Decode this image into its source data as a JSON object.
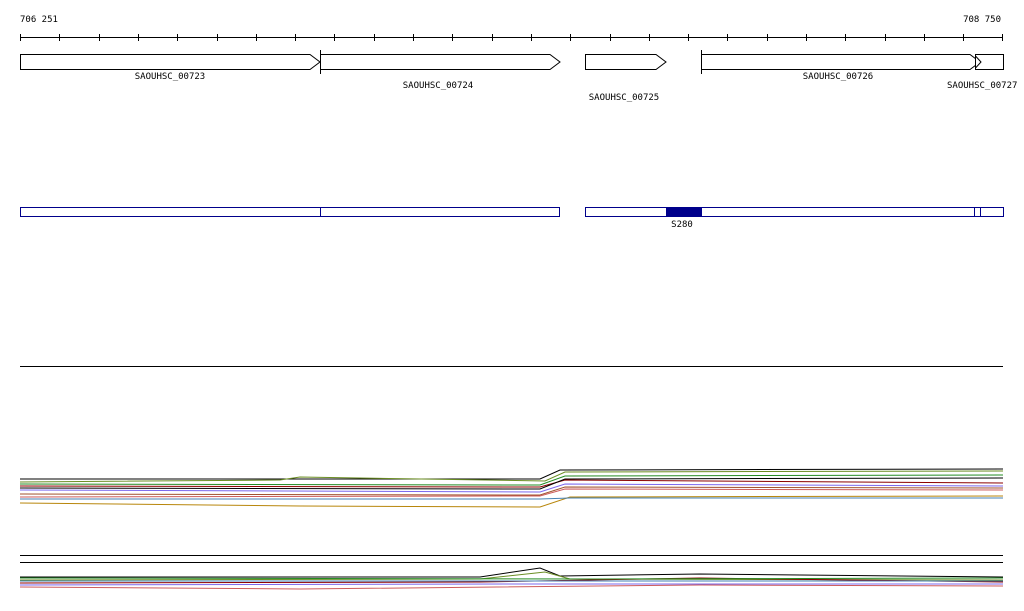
{
  "ruler": {
    "start": "706 251",
    "end": "708 750"
  },
  "genes": [
    {
      "label": "SAOUHSC_00723"
    },
    {
      "label": "SAOUHSC_00724"
    },
    {
      "label": "SAOUHSC_00725"
    },
    {
      "label": "SAOUHSC_00726"
    },
    {
      "label": "SAOUHSC_00727"
    }
  ],
  "features": [
    {
      "label": "S280"
    }
  ]
}
